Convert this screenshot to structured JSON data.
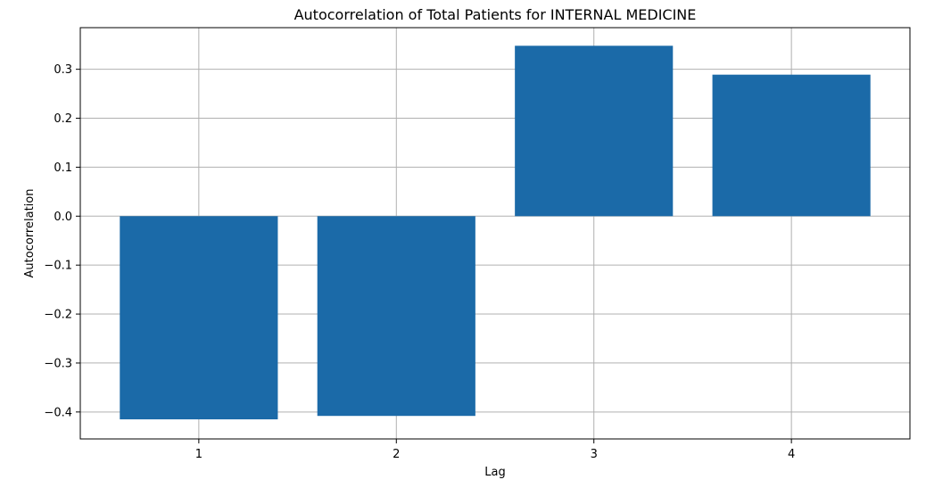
{
  "chart_data": {
    "type": "bar",
    "title": "Autocorrelation of Total Patients for INTERNAL MEDICINE",
    "xlabel": "Lag",
    "ylabel": "Autocorrelation",
    "categories": [
      "1",
      "2",
      "3",
      "4"
    ],
    "x": [
      1,
      2,
      3,
      4
    ],
    "values": [
      -0.415,
      -0.408,
      0.348,
      0.289
    ],
    "ylim": [
      -0.455,
      0.385
    ],
    "xlim": [
      0.4,
      4.6
    ],
    "yticks": [
      -0.4,
      -0.3,
      -0.2,
      -0.1,
      0.0,
      0.1,
      0.2,
      0.3
    ],
    "ytick_labels": [
      "−0.4",
      "−0.3",
      "−0.2",
      "−0.1",
      "0.0",
      "0.1",
      "0.2",
      "0.3"
    ],
    "grid": true,
    "bar_width": 0.8,
    "bar_color": "#1b6aa8",
    "grid_color": "#b0b0b0"
  }
}
